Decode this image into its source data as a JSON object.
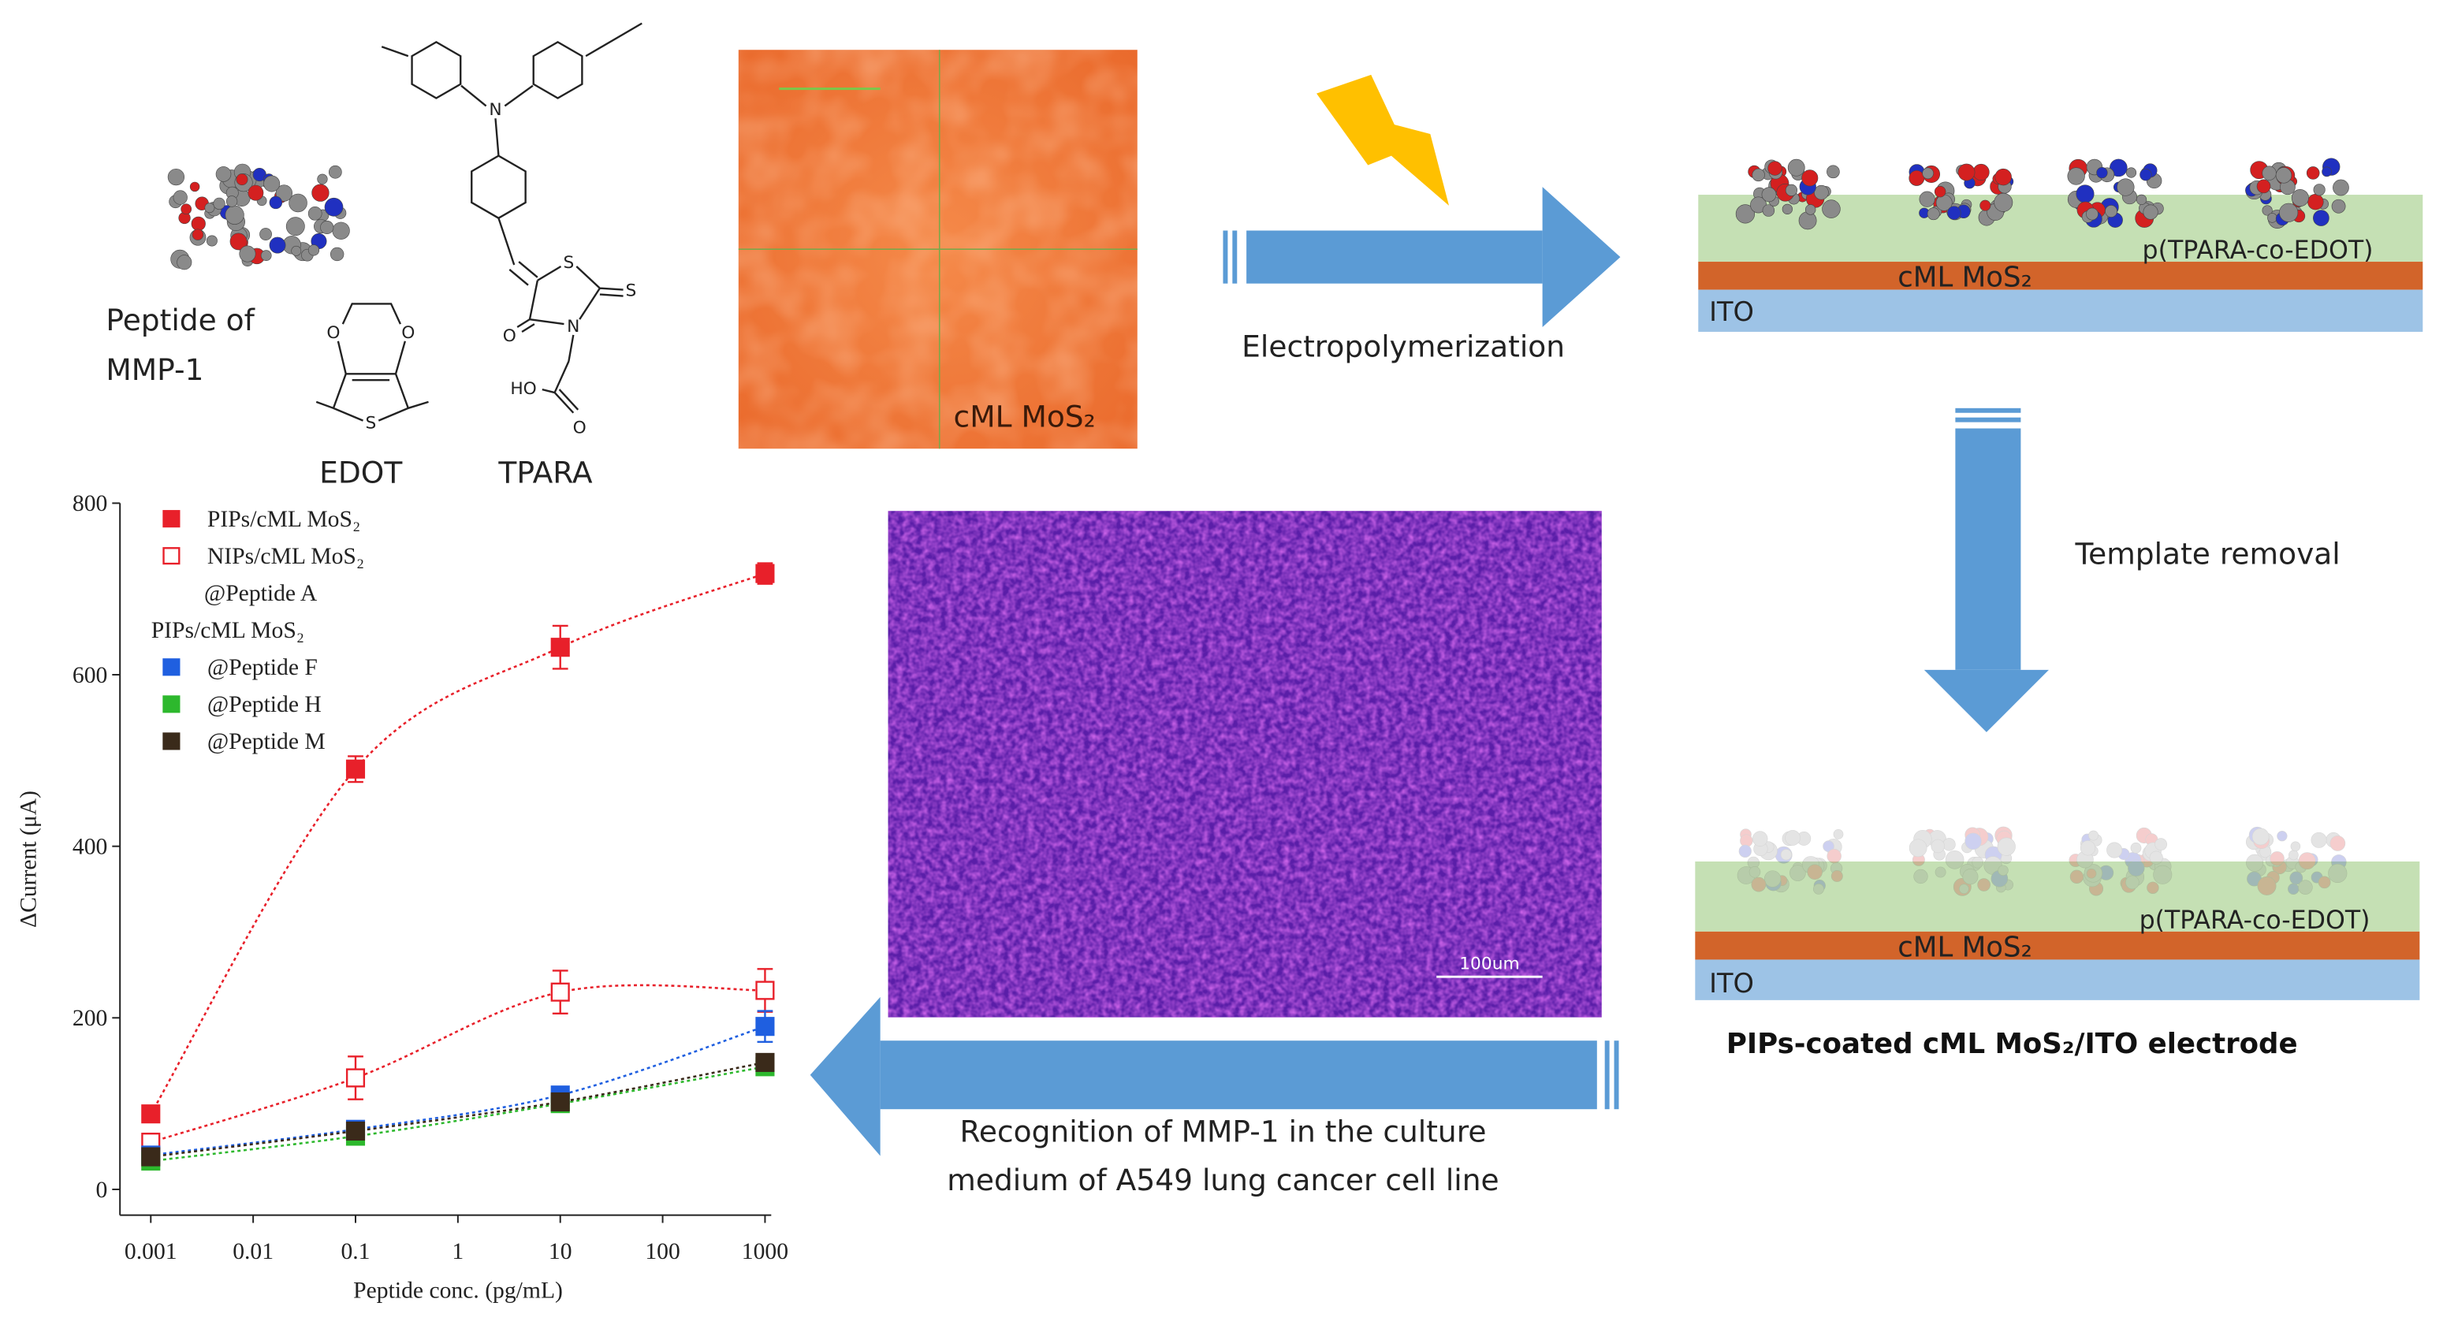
{
  "molecules": {
    "peptide_label": [
      "Peptide of",
      "MMP-1"
    ],
    "edot": {
      "label": "EDOT",
      "atoms": [
        "O",
        "O",
        "S"
      ]
    },
    "tpara": {
      "label": "TPARA",
      "atoms": [
        "N",
        "S",
        "S",
        "O",
        "N",
        "HO",
        "O"
      ]
    }
  },
  "micrograph_top": {
    "label": "cML MoS₂"
  },
  "step1": "Electropolymerization",
  "electrode_top": {
    "polymer": "p(TPARA-co-EDOT)",
    "mos2": "cML MoS₂",
    "ito": "ITO"
  },
  "step2": "Template removal",
  "electrode_bottom": {
    "polymer": "p(TPARA-co-EDOT)",
    "mos2": "cML MoS₂",
    "ito": "ITO",
    "caption": "PIPs-coated cML MoS₂/ITO electrode"
  },
  "micrograph_bottom": {
    "scale_bar": "100um"
  },
  "step3": [
    "Recognition of MMP-1 in the culture",
    "medium of A549 lung cancer cell line"
  ],
  "chart_data": {
    "type": "scatter",
    "xlabel": "Peptide conc. (pg/mL)",
    "ylabel": "ΔCurrent (μA)",
    "xscale": "log",
    "xlim": [
      0.0005,
      1150
    ],
    "ylim": [
      -30,
      800
    ],
    "xticks": [
      0.001,
      0.01,
      0.1,
      1,
      10,
      100,
      1000
    ],
    "yticks": [
      0,
      200,
      400,
      600,
      800
    ],
    "x": [
      0.001,
      0.1,
      10,
      1000
    ],
    "series": [
      {
        "name": "PIPs/cML MoS₂",
        "color": "#e8202a",
        "marker": "filled",
        "values": [
          88,
          490,
          632,
          718
        ],
        "errors": [
          8,
          15,
          25,
          12
        ]
      },
      {
        "name": "NIPs/cML MoS₂",
        "color": "#e8202a",
        "marker": "open",
        "values": [
          55,
          130,
          230,
          232
        ],
        "errors": [
          10,
          25,
          25,
          25
        ]
      },
      {
        "name": "@Peptide F",
        "color": "#1f5fe0",
        "marker": "filled",
        "values": [
          40,
          70,
          110,
          190
        ],
        "errors": [
          6,
          8,
          8,
          18
        ]
      },
      {
        "name": "@Peptide H",
        "color": "#2db82d",
        "marker": "filled",
        "values": [
          33,
          62,
          100,
          143
        ],
        "errors": [
          5,
          6,
          7,
          8
        ]
      },
      {
        "name": "@Peptide M",
        "color": "#3a2a1a",
        "marker": "filled",
        "values": [
          38,
          68,
          102,
          148
        ],
        "errors": [
          5,
          6,
          7,
          8
        ]
      }
    ],
    "legend_notes": [
      "@Peptide A",
      "PIPs/cML MoS₂"
    ]
  }
}
